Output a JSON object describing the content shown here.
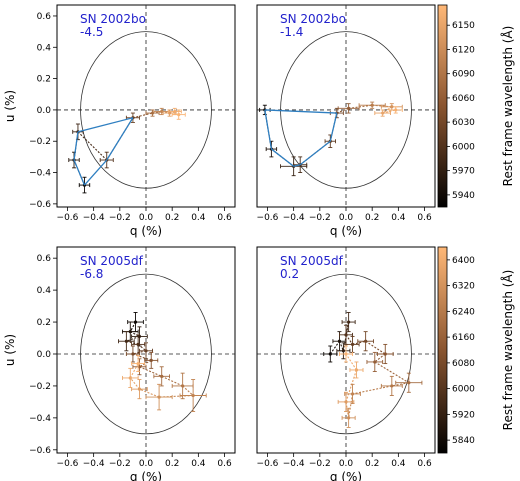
{
  "chart_data": [
    {
      "type": "scatter",
      "panel": "top-left",
      "annotation": [
        "SN 2002bo",
        "-4.5"
      ],
      "xlabel": "q (%)",
      "ylabel": "u (%)",
      "xlim": [
        -0.68,
        0.68
      ],
      "ylim": [
        -0.62,
        0.67
      ],
      "xticks": [
        -0.6,
        -0.4,
        -0.2,
        0.0,
        0.2,
        0.4,
        0.6
      ],
      "yticks": [
        -0.6,
        -0.4,
        -0.2,
        0.0,
        0.2,
        0.4,
        0.6
      ],
      "circle_radius": 0.5,
      "colorbar": "wavelength_2002bo",
      "points": [
        {
          "q": -0.47,
          "u": -0.48,
          "eq": 0.04,
          "eu": 0.05,
          "w": 5935
        },
        {
          "q": -0.55,
          "u": -0.32,
          "eq": 0.04,
          "eu": 0.05,
          "w": 5960
        },
        {
          "q": -0.52,
          "u": -0.14,
          "eq": 0.04,
          "eu": 0.05,
          "w": 5980
        },
        {
          "q": -0.3,
          "u": -0.32,
          "eq": 0.05,
          "eu": 0.05,
          "w": 6000
        },
        {
          "q": -0.1,
          "u": -0.05,
          "eq": 0.05,
          "eu": 0.03,
          "w": 6020
        },
        {
          "q": 0.05,
          "u": -0.02,
          "eq": 0.05,
          "eu": 0.02,
          "w": 6080
        },
        {
          "q": 0.12,
          "u": -0.01,
          "eq": 0.06,
          "eu": 0.02,
          "w": 6110
        },
        {
          "q": 0.18,
          "u": -0.02,
          "eq": 0.05,
          "eu": 0.02,
          "w": 6140
        },
        {
          "q": 0.22,
          "u": -0.01,
          "eq": 0.05,
          "eu": 0.02,
          "w": 6160
        },
        {
          "q": 0.25,
          "u": -0.03,
          "eq": 0.05,
          "eu": 0.03,
          "w": 6170
        }
      ],
      "blue_path": [
        {
          "q": -0.1,
          "u": -0.05
        },
        {
          "q": -0.52,
          "u": -0.14
        },
        {
          "q": -0.55,
          "u": -0.32
        },
        {
          "q": -0.47,
          "u": -0.48
        },
        {
          "q": -0.3,
          "u": -0.32
        },
        {
          "q": -0.1,
          "u": -0.05
        }
      ]
    },
    {
      "type": "scatter",
      "panel": "top-right",
      "annotation": [
        "SN 2002bo",
        "-1.4"
      ],
      "xlabel": "q (%)",
      "ylabel": "",
      "xlim": [
        -0.68,
        0.68
      ],
      "ylim": [
        -0.62,
        0.67
      ],
      "xticks": [
        -0.6,
        -0.4,
        -0.2,
        0.0,
        0.2,
        0.4,
        0.6
      ],
      "yticks": [],
      "circle_radius": 0.5,
      "colorbar": "wavelength_2002bo",
      "points": [
        {
          "q": -0.62,
          "u": 0.0,
          "eq": 0.04,
          "eu": 0.03,
          "w": 5935
        },
        {
          "q": -0.57,
          "u": -0.25,
          "eq": 0.04,
          "eu": 0.05,
          "w": 5955
        },
        {
          "q": -0.4,
          "u": -0.36,
          "eq": 0.1,
          "eu": 0.06,
          "w": 5975
        },
        {
          "q": -0.35,
          "u": -0.35,
          "eq": 0.05,
          "eu": 0.05,
          "w": 5990
        },
        {
          "q": -0.12,
          "u": -0.2,
          "eq": 0.04,
          "eu": 0.04,
          "w": 6010
        },
        {
          "q": -0.07,
          "u": -0.02,
          "eq": 0.05,
          "eu": 0.03,
          "w": 6030
        },
        {
          "q": 0.02,
          "u": 0.01,
          "eq": 0.08,
          "eu": 0.03,
          "w": 6060
        },
        {
          "q": 0.2,
          "u": 0.03,
          "eq": 0.1,
          "eu": 0.02,
          "w": 6100
        },
        {
          "q": 0.35,
          "u": 0.02,
          "eq": 0.08,
          "eu": 0.02,
          "w": 6130
        },
        {
          "q": 0.28,
          "u": -0.02,
          "eq": 0.06,
          "eu": 0.02,
          "w": 6150
        },
        {
          "q": 0.38,
          "u": 0.0,
          "eq": 0.05,
          "eu": 0.02,
          "w": 6165
        }
      ],
      "blue_path": [
        {
          "q": -0.07,
          "u": -0.02
        },
        {
          "q": -0.62,
          "u": 0.0
        },
        {
          "q": -0.57,
          "u": -0.25
        },
        {
          "q": -0.4,
          "u": -0.36
        },
        {
          "q": -0.35,
          "u": -0.35
        },
        {
          "q": -0.12,
          "u": -0.2
        },
        {
          "q": -0.07,
          "u": -0.02
        }
      ]
    },
    {
      "type": "scatter",
      "panel": "bottom-left",
      "annotation": [
        "SN 2005df",
        "-6.8"
      ],
      "xlabel": "q (%)",
      "ylabel": "u (%)",
      "xlim": [
        -0.68,
        0.68
      ],
      "ylim": [
        -0.62,
        0.67
      ],
      "xticks": [
        -0.6,
        -0.4,
        -0.2,
        0.0,
        0.2,
        0.4,
        0.6
      ],
      "yticks": [
        -0.6,
        -0.4,
        -0.2,
        0.0,
        0.2,
        0.4,
        0.6
      ],
      "circle_radius": 0.5,
      "colorbar": "wavelength_2005df",
      "points": [
        {
          "q": -0.08,
          "u": 0.2,
          "eq": 0.06,
          "eu": 0.06,
          "w": 5830
        },
        {
          "q": -0.12,
          "u": 0.14,
          "eq": 0.06,
          "eu": 0.06,
          "w": 5870
        },
        {
          "q": -0.05,
          "u": 0.11,
          "eq": 0.06,
          "eu": 0.06,
          "w": 5910
        },
        {
          "q": -0.15,
          "u": 0.08,
          "eq": 0.06,
          "eu": 0.06,
          "w": 5950
        },
        {
          "q": -0.06,
          "u": 0.06,
          "eq": 0.05,
          "eu": 0.06,
          "w": 5990
        },
        {
          "q": 0.0,
          "u": 0.02,
          "eq": 0.05,
          "eu": 0.05,
          "w": 6030
        },
        {
          "q": -0.1,
          "u": 0.0,
          "eq": 0.05,
          "eu": 0.05,
          "w": 6070
        },
        {
          "q": 0.04,
          "u": -0.04,
          "eq": 0.05,
          "eu": 0.05,
          "w": 6110
        },
        {
          "q": -0.05,
          "u": -0.08,
          "eq": 0.05,
          "eu": 0.05,
          "w": 6150
        },
        {
          "q": 0.12,
          "u": -0.14,
          "eq": 0.06,
          "eu": 0.06,
          "w": 6190
        },
        {
          "q": 0.28,
          "u": -0.2,
          "eq": 0.08,
          "eu": 0.08,
          "w": 6230
        },
        {
          "q": 0.36,
          "u": -0.26,
          "eq": 0.1,
          "eu": 0.1,
          "w": 6270
        },
        {
          "q": 0.1,
          "u": -0.27,
          "eq": 0.1,
          "eu": 0.08,
          "w": 6310
        },
        {
          "q": -0.05,
          "u": -0.22,
          "eq": 0.06,
          "eu": 0.06,
          "w": 6350
        },
        {
          "q": -0.12,
          "u": -0.15,
          "eq": 0.06,
          "eu": 0.06,
          "w": 6390
        },
        {
          "q": -0.06,
          "u": -0.06,
          "eq": 0.05,
          "eu": 0.05,
          "w": 6420
        }
      ]
    },
    {
      "type": "scatter",
      "panel": "bottom-right",
      "annotation": [
        "SN 2005df",
        "0.2"
      ],
      "xlabel": "q (%)",
      "ylabel": "",
      "xlim": [
        -0.68,
        0.68
      ],
      "ylim": [
        -0.62,
        0.67
      ],
      "xticks": [
        -0.6,
        -0.4,
        -0.2,
        0.0,
        0.2,
        0.4,
        0.6
      ],
      "yticks": [],
      "circle_radius": 0.5,
      "colorbar": "wavelength_2005df",
      "points": [
        {
          "q": -0.12,
          "u": 0.0,
          "eq": 0.05,
          "eu": 0.05,
          "w": 5830
        },
        {
          "q": -0.05,
          "u": 0.08,
          "eq": 0.05,
          "eu": 0.06,
          "w": 5870
        },
        {
          "q": -0.02,
          "u": 0.02,
          "eq": 0.05,
          "eu": 0.05,
          "w": 5910
        },
        {
          "q": 0.02,
          "u": 0.2,
          "eq": 0.05,
          "eu": 0.06,
          "w": 5950
        },
        {
          "q": 0.0,
          "u": 0.12,
          "eq": 0.05,
          "eu": 0.06,
          "w": 5990
        },
        {
          "q": 0.05,
          "u": 0.06,
          "eq": 0.05,
          "eu": 0.05,
          "w": 6030
        },
        {
          "q": 0.15,
          "u": 0.08,
          "eq": 0.06,
          "eu": 0.06,
          "w": 6070
        },
        {
          "q": 0.3,
          "u": 0.0,
          "eq": 0.06,
          "eu": 0.06,
          "w": 6110
        },
        {
          "q": 0.22,
          "u": -0.05,
          "eq": 0.06,
          "eu": 0.06,
          "w": 6150
        },
        {
          "q": 0.48,
          "u": -0.18,
          "eq": 0.1,
          "eu": 0.06,
          "w": 6190
        },
        {
          "q": 0.35,
          "u": -0.2,
          "eq": 0.08,
          "eu": 0.06,
          "w": 6230
        },
        {
          "q": 0.05,
          "u": -0.25,
          "eq": 0.06,
          "eu": 0.06,
          "w": 6270
        },
        {
          "q": 0.02,
          "u": -0.4,
          "eq": 0.05,
          "eu": 0.06,
          "w": 6310
        },
        {
          "q": 0.0,
          "u": -0.3,
          "eq": 0.06,
          "eu": 0.06,
          "w": 6350
        },
        {
          "q": 0.08,
          "u": -0.1,
          "eq": 0.05,
          "eu": 0.05,
          "w": 6390
        },
        {
          "q": 0.0,
          "u": 0.0,
          "eq": 0.05,
          "eu": 0.05,
          "w": 6420
        }
      ]
    }
  ],
  "colorbars": {
    "wavelength_2002bo": {
      "label": "Rest frame wavelength (Å)",
      "range": [
        5925,
        6175
      ],
      "ticks": [
        5940,
        5970,
        6000,
        6030,
        6060,
        6090,
        6120,
        6150
      ],
      "tick_labels": [
        "5940",
        "5970",
        "6000",
        "6030",
        "6060",
        "6090",
        "6120",
        "6150"
      ]
    },
    "wavelength_2005df": {
      "label": "Rest frame wavelength (Å)",
      "range": [
        5800,
        6440
      ],
      "ticks": [
        5840,
        5920,
        6000,
        6080,
        6160,
        6240,
        6320,
        6400
      ],
      "tick_labels": [
        "5840",
        "5920",
        "6000",
        "6080",
        "6160",
        "6240",
        "6320",
        "6400"
      ]
    }
  },
  "tick_labels": {
    "x": [
      "−0.6",
      "−0.4",
      "−0.2",
      "0.0",
      "0.2",
      "0.4",
      "0.6"
    ],
    "y": [
      "−0.6",
      "−0.4",
      "−0.2",
      "0.0",
      "0.2",
      "0.4",
      "0.6"
    ]
  },
  "colors": {
    "blue_line": "#2f7fc1",
    "annotation_text": "#2222cc",
    "cmap_low": "#000000",
    "cmap_mid": "#8a5530",
    "cmap_high": "#ffb877"
  }
}
